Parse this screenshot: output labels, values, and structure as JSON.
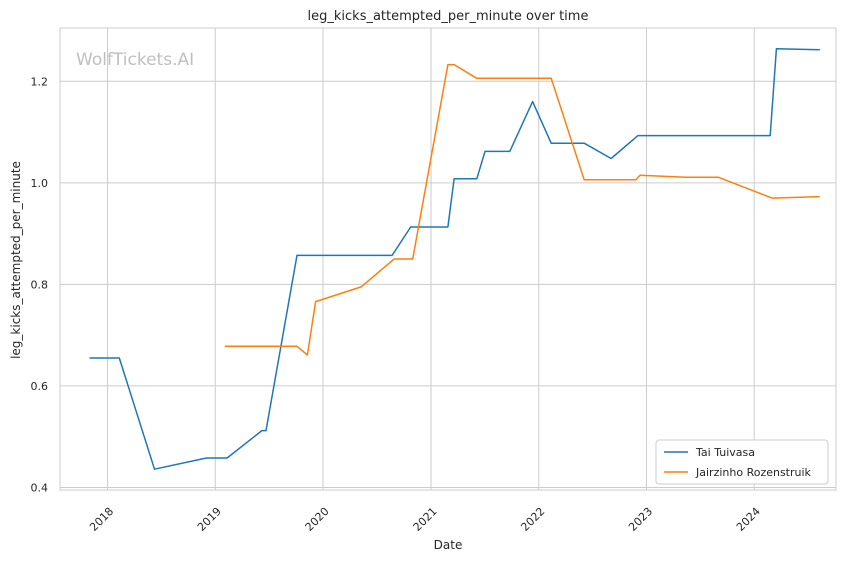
{
  "chart_data": {
    "type": "line",
    "title": "leg_kicks_attempted_per_minute over time",
    "xlabel": "Date",
    "ylabel": "leg_kicks_attempted_per_minute",
    "watermark": "WolfTickets.AI",
    "xlim": [
      "2017-07-24",
      "2024-10-04"
    ],
    "ylim": [
      0.395,
      1.305
    ],
    "x_ticks": [
      "2018",
      "2019",
      "2020",
      "2021",
      "2022",
      "2023",
      "2024"
    ],
    "x_tick_dates": [
      "2018-01-01",
      "2019-01-01",
      "2020-01-01",
      "2021-01-01",
      "2022-01-01",
      "2023-01-01",
      "2024-01-01"
    ],
    "y_ticks": [
      "0.4",
      "0.6",
      "0.8",
      "1.0",
      "1.2"
    ],
    "y_tick_values": [
      0.4,
      0.6,
      0.8,
      1.0,
      1.2
    ],
    "grid": true,
    "legend_position": "bottom-right",
    "series": [
      {
        "name": "Tai Tuivasa",
        "color": "#1f77b4",
        "points": [
          [
            "2017-11-01",
            0.655
          ],
          [
            "2018-02-10",
            0.655
          ],
          [
            "2018-06-09",
            0.436
          ],
          [
            "2018-12-02",
            0.458
          ],
          [
            "2019-02-10",
            0.458
          ],
          [
            "2019-06-08",
            0.512
          ],
          [
            "2019-06-22",
            0.512
          ],
          [
            "2019-10-05",
            0.857
          ],
          [
            "2020-08-22",
            0.857
          ],
          [
            "2020-10-24",
            0.913
          ],
          [
            "2021-02-27",
            0.913
          ],
          [
            "2021-03-20",
            1.008
          ],
          [
            "2021-06-05",
            1.008
          ],
          [
            "2021-07-03",
            1.062
          ],
          [
            "2021-09-25",
            1.062
          ],
          [
            "2021-12-11",
            1.16
          ],
          [
            "2022-02-12",
            1.078
          ],
          [
            "2022-06-04",
            1.078
          ],
          [
            "2022-09-03",
            1.048
          ],
          [
            "2022-12-03",
            1.093
          ],
          [
            "2024-02-24",
            1.093
          ],
          [
            "2024-03-16",
            1.264
          ],
          [
            "2024-08-10",
            1.262
          ]
        ]
      },
      {
        "name": "Jairzinho Rozenstruik",
        "color": "#ff7f0e",
        "points": [
          [
            "2019-02-02",
            0.678
          ],
          [
            "2019-10-05",
            0.678
          ],
          [
            "2019-11-09",
            0.661
          ],
          [
            "2019-12-07",
            0.766
          ],
          [
            "2020-05-09",
            0.795
          ],
          [
            "2020-08-29",
            0.85
          ],
          [
            "2020-10-31",
            0.85
          ],
          [
            "2021-02-27",
            1.233
          ],
          [
            "2021-03-20",
            1.233
          ],
          [
            "2021-06-05",
            1.206
          ],
          [
            "2022-02-12",
            1.206
          ],
          [
            "2022-06-04",
            1.006
          ],
          [
            "2022-11-26",
            1.006
          ],
          [
            "2022-12-10",
            1.015
          ],
          [
            "2023-05-13",
            1.011
          ],
          [
            "2023-09-02",
            1.011
          ],
          [
            "2024-03-02",
            0.97
          ],
          [
            "2024-08-10",
            0.973
          ]
        ]
      }
    ]
  }
}
